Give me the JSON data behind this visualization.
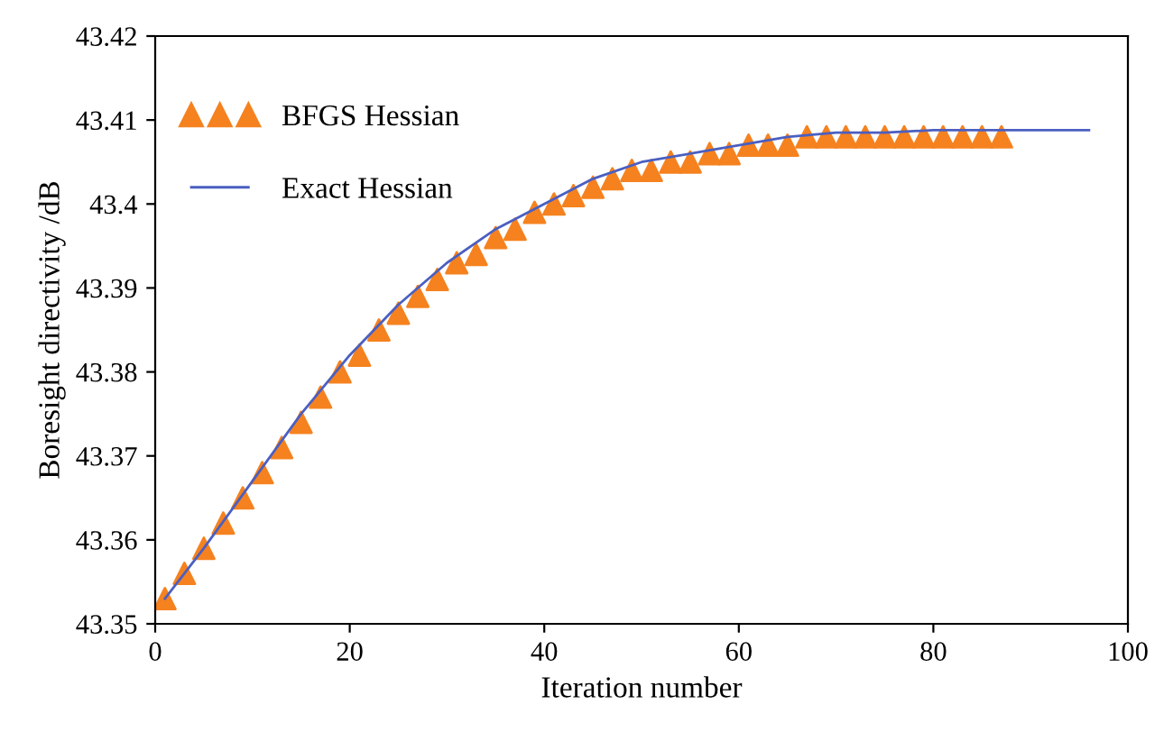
{
  "chart_data": {
    "type": "line",
    "xlabel": "Iteration number",
    "ylabel": "Boresight directivity /dB",
    "xlim": [
      0,
      100
    ],
    "xticks": [
      0,
      20,
      40,
      60,
      80,
      100
    ],
    "ylim": [
      43.35,
      43.42
    ],
    "yticks": [
      43.35,
      43.36,
      43.37,
      43.38,
      43.39,
      43.4,
      43.41,
      43.42
    ],
    "grid": false,
    "legend": "top left",
    "series": [
      {
        "name": "BFGS Hessian",
        "type": "scatter",
        "color": "#f5821f",
        "marker": "triangle",
        "x": [
          1,
          3,
          5,
          7,
          9,
          11,
          13,
          15,
          17,
          19,
          21,
          23,
          25,
          27,
          29,
          31,
          33,
          35,
          37,
          39,
          41,
          43,
          45,
          47,
          49,
          51,
          53,
          55,
          57,
          59,
          61,
          63,
          65,
          67,
          69,
          71,
          73,
          75,
          77,
          79,
          81,
          83,
          85,
          87
        ],
        "values": [
          43.353,
          43.356,
          43.359,
          43.362,
          43.365,
          43.368,
          43.371,
          43.374,
          43.377,
          43.38,
          43.382,
          43.385,
          43.387,
          43.389,
          43.391,
          43.393,
          43.394,
          43.396,
          43.397,
          43.399,
          43.4,
          43.401,
          43.402,
          43.403,
          43.404,
          43.404,
          43.405,
          43.405,
          43.406,
          43.406,
          43.407,
          43.407,
          43.407,
          43.408,
          43.408,
          43.408,
          43.408,
          43.408,
          43.408,
          43.408,
          43.408,
          43.408,
          43.408,
          43.408
        ]
      },
      {
        "name": "Exact Hessian",
        "color": "#4a5fc1",
        "marker": "none",
        "line_style": "solid",
        "x": [
          1,
          5,
          10,
          15,
          20,
          25,
          30,
          35,
          40,
          45,
          50,
          55,
          60,
          65,
          70,
          75,
          80,
          85,
          90,
          96
        ],
        "values": [
          43.353,
          43.359,
          43.367,
          43.375,
          43.382,
          43.388,
          43.393,
          43.397,
          43.4,
          43.403,
          43.405,
          43.406,
          43.407,
          43.408,
          43.4085,
          43.4085,
          43.4088,
          43.4088,
          43.4088,
          43.4088
        ]
      }
    ]
  }
}
